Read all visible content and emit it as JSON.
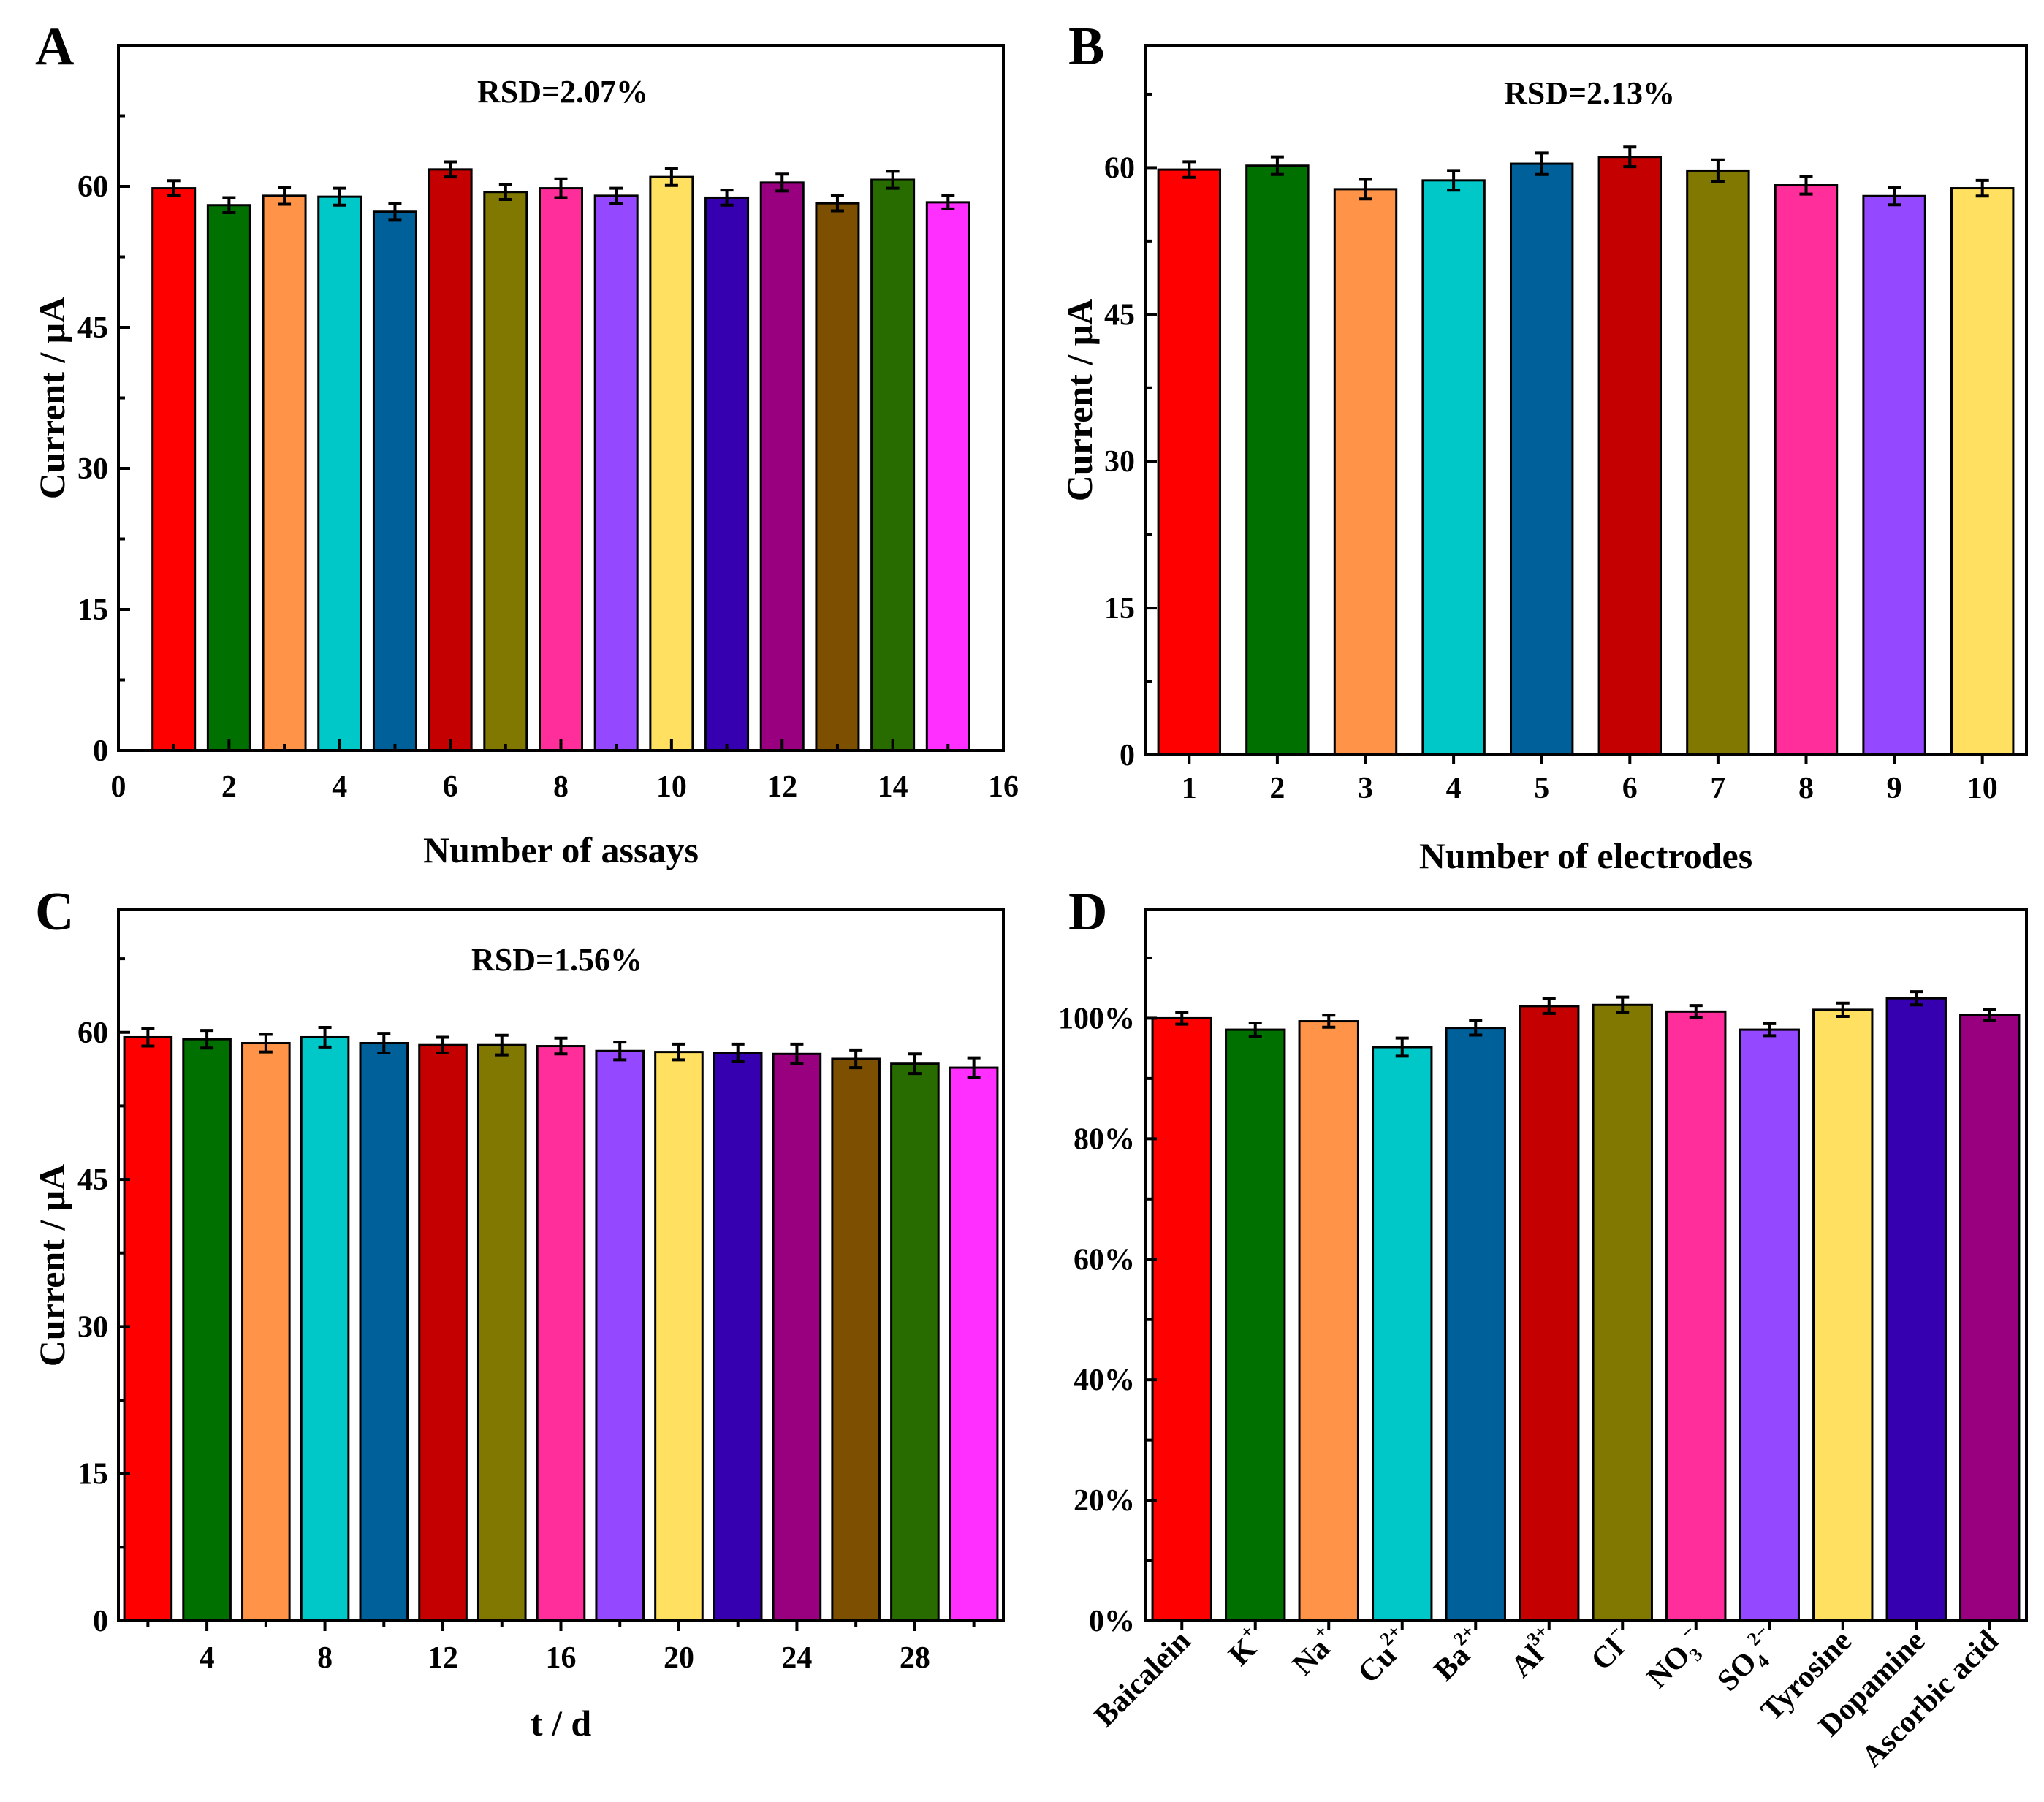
{
  "figure": {
    "panels": [
      "A",
      "B",
      "C",
      "D"
    ]
  },
  "chart_data": [
    {
      "panel": "A",
      "type": "bar",
      "annotation": "RSD=2.07%",
      "xlabel": "Number of assays",
      "ylabel": "Current / μA",
      "xlim": [
        0,
        16
      ],
      "ylim": [
        0,
        75
      ],
      "x_ticks": [
        0,
        2,
        4,
        6,
        8,
        10,
        12,
        14,
        16
      ],
      "y_ticks": [
        0,
        15,
        30,
        45,
        60
      ],
      "x": [
        1,
        2,
        3,
        4,
        5,
        6,
        7,
        8,
        9,
        10,
        11,
        12,
        13,
        14,
        15
      ],
      "values": [
        59.8,
        58.0,
        59.0,
        58.9,
        57.3,
        61.8,
        59.4,
        59.8,
        59.0,
        61.0,
        58.8,
        60.4,
        58.2,
        60.7,
        58.3
      ],
      "errors": [
        0.8,
        0.8,
        0.9,
        0.9,
        0.9,
        0.8,
        0.8,
        1.0,
        0.8,
        0.9,
        0.8,
        0.9,
        0.8,
        0.9,
        0.7
      ],
      "colors": [
        "#ff0000",
        "#007000",
        "#ff9448",
        "#00c8c8",
        "#00619a",
        "#c40000",
        "#807800",
        "#ff2e9a",
        "#9448ff",
        "#ffe060",
        "#3600b0",
        "#980080",
        "#7c5000",
        "#286c00",
        "#ff30ff"
      ]
    },
    {
      "panel": "B",
      "type": "bar",
      "annotation": "RSD=2.13%",
      "xlabel": "Number of electrodes",
      "ylabel": "Current / μA",
      "ylim": [
        0,
        72.5
      ],
      "y_ticks": [
        0,
        15,
        30,
        45,
        60
      ],
      "categories": [
        "1",
        "2",
        "3",
        "4",
        "5",
        "6",
        "7",
        "8",
        "9",
        "10"
      ],
      "values": [
        59.8,
        60.2,
        57.8,
        58.7,
        60.4,
        61.1,
        59.7,
        58.2,
        57.1,
        57.9
      ],
      "errors": [
        0.8,
        0.9,
        1.0,
        1.0,
        1.1,
        1.0,
        1.1,
        0.9,
        0.9,
        0.8
      ],
      "colors": [
        "#ff0000",
        "#007000",
        "#ff9448",
        "#00c8c8",
        "#00619a",
        "#c40000",
        "#807800",
        "#ff2e9a",
        "#9448ff",
        "#ffe060"
      ]
    },
    {
      "panel": "C",
      "type": "bar",
      "annotation": "RSD=1.56%",
      "xlabel": "t / d",
      "ylabel": "Current / μA",
      "ylim": [
        0,
        72.5
      ],
      "y_ticks": [
        0,
        15,
        30,
        45,
        60
      ],
      "x_ticks": [
        4,
        8,
        12,
        16,
        20,
        24,
        28
      ],
      "x": [
        2,
        4,
        6,
        8,
        10,
        12,
        14,
        16,
        18,
        20,
        22,
        24,
        26,
        28,
        30
      ],
      "values": [
        59.5,
        59.3,
        58.9,
        59.5,
        58.9,
        58.7,
        58.7,
        58.6,
        58.1,
        58.0,
        57.9,
        57.8,
        57.3,
        56.8,
        56.4
      ],
      "errors": [
        0.9,
        0.9,
        0.9,
        1.0,
        1.0,
        0.8,
        1.0,
        0.8,
        0.9,
        0.8,
        0.9,
        1.0,
        0.9,
        1.0,
        1.0
      ],
      "colors": [
        "#ff0000",
        "#007000",
        "#ff9448",
        "#00c8c8",
        "#00619a",
        "#c40000",
        "#807800",
        "#ff2e9a",
        "#9448ff",
        "#ffe060",
        "#3600b0",
        "#980080",
        "#7c5000",
        "#286c00",
        "#ff30ff"
      ]
    },
    {
      "panel": "D",
      "type": "bar",
      "ylabel": "",
      "ylim": [
        0,
        118
      ],
      "y_ticks": [
        0,
        20,
        40,
        60,
        80,
        100
      ],
      "y_tick_labels": [
        "0%",
        "20%",
        "40%",
        "60%",
        "80%",
        "100%"
      ],
      "categories": [
        {
          "base": "Baicalein",
          "sup": "",
          "sub": ""
        },
        {
          "base": "K",
          "sup": "+",
          "sub": ""
        },
        {
          "base": "Na",
          "sup": "+",
          "sub": ""
        },
        {
          "base": "Cu",
          "sup": "2+",
          "sub": ""
        },
        {
          "base": "Ba",
          "sup": "2+",
          "sub": ""
        },
        {
          "base": "Al",
          "sup": "3+",
          "sub": ""
        },
        {
          "base": "Cl",
          "sup": "−",
          "sub": ""
        },
        {
          "base": "NO",
          "sup": "−",
          "sub": "3"
        },
        {
          "base": "SO",
          "sup": "2−",
          "sub": "4"
        },
        {
          "base": "Tyrosine",
          "sup": "",
          "sub": ""
        },
        {
          "base": "Dopamine",
          "sup": "",
          "sub": ""
        },
        {
          "base": "Ascorbic acid",
          "sup": "",
          "sub": ""
        }
      ],
      "values": [
        100.0,
        98.1,
        99.5,
        95.2,
        98.4,
        102.0,
        102.2,
        101.1,
        98.1,
        101.4,
        103.3,
        100.5
      ],
      "errors": [
        1.0,
        1.1,
        1.0,
        1.5,
        1.2,
        1.2,
        1.3,
        1.0,
        1.0,
        1.1,
        1.1,
        0.9
      ],
      "colors": [
        "#ff0000",
        "#007000",
        "#ff9448",
        "#00c8c8",
        "#00619a",
        "#c40000",
        "#807800",
        "#ff2e9a",
        "#9448ff",
        "#ffe060",
        "#3600b0",
        "#980080"
      ]
    }
  ]
}
